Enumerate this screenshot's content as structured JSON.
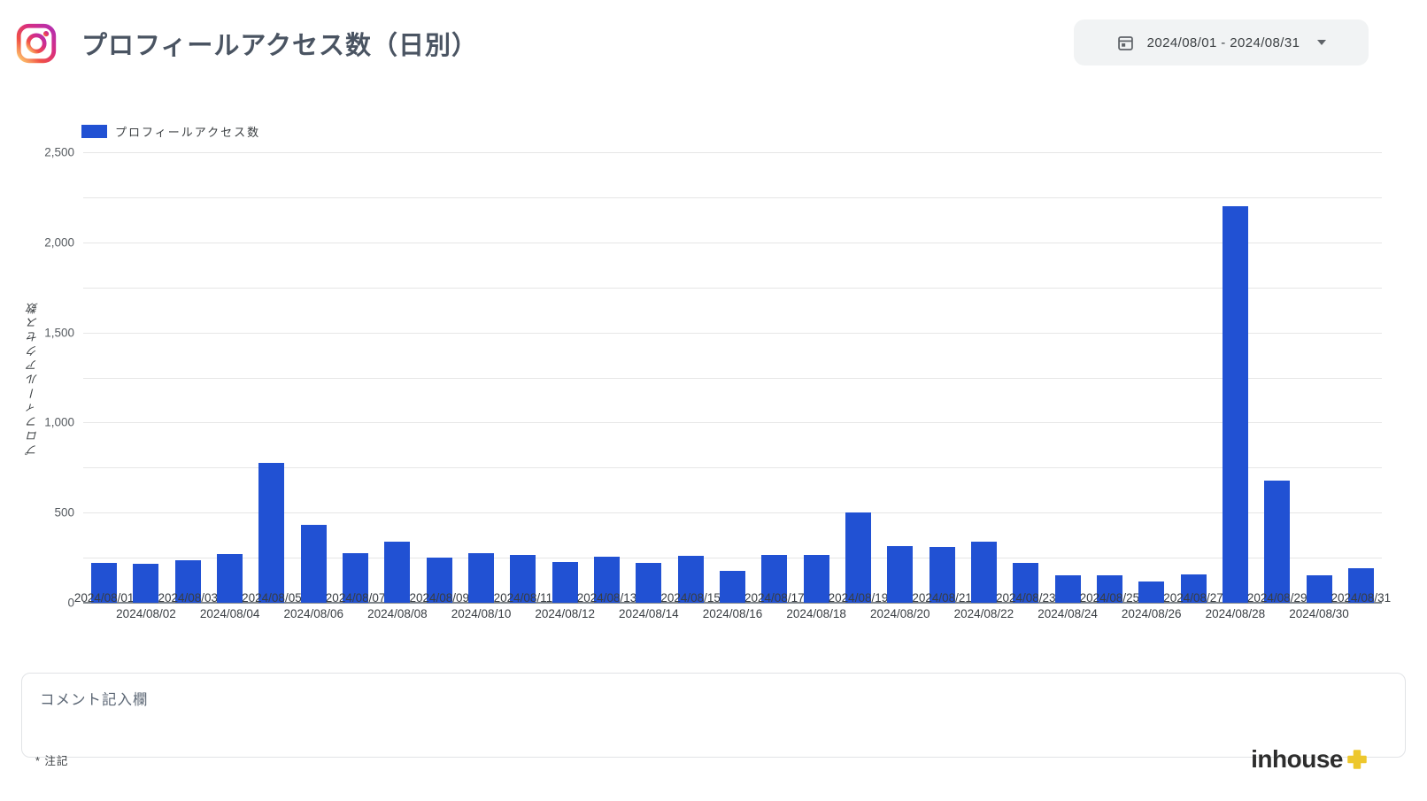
{
  "header": {
    "title": "プロフィールアクセス数（日別）",
    "date_range_picker": {
      "value": "2024/08/01 - 2024/08/31"
    }
  },
  "legend": {
    "label": "プロフィールアクセス数"
  },
  "chart_data": {
    "type": "bar",
    "title": "プロフィールアクセス数（日別）",
    "xlabel": "",
    "ylabel": "プロフィールアクセス数",
    "categories": [
      "2024/08/01",
      "2024/08/02",
      "2024/08/03",
      "2024/08/04",
      "2024/08/05",
      "2024/08/06",
      "2024/08/07",
      "2024/08/08",
      "2024/08/09",
      "2024/08/10",
      "2024/08/11",
      "2024/08/12",
      "2024/08/13",
      "2024/08/14",
      "2024/08/15",
      "2024/08/16",
      "2024/08/17",
      "2024/08/18",
      "2024/08/19",
      "2024/08/20",
      "2024/08/21",
      "2024/08/22",
      "2024/08/23",
      "2024/08/24",
      "2024/08/25",
      "2024/08/26",
      "2024/08/27",
      "2024/08/28",
      "2024/08/29",
      "2024/08/30",
      "2024/08/31"
    ],
    "values": [
      220,
      215,
      235,
      270,
      775,
      430,
      275,
      340,
      250,
      275,
      265,
      225,
      255,
      220,
      260,
      175,
      265,
      265,
      500,
      315,
      310,
      340,
      220,
      150,
      150,
      120,
      155,
      2200,
      680,
      150,
      190
    ],
    "series_name": "プロフィールアクセス数",
    "ylim": [
      0,
      2500
    ],
    "gridline_interval": 250,
    "ytick_labels": [
      "0",
      "500",
      "1,000",
      "1,500",
      "2,000",
      "2,500"
    ],
    "ytick_interval": 500,
    "grid": true,
    "legend_position": "top-left",
    "x_label_rows": "alternating",
    "bar_color": "#2151d3"
  },
  "comment_box": {
    "placeholder": "コメント記入欄"
  },
  "footer": {
    "note": "* 注記",
    "brand_name": "inhouse"
  },
  "colors": {
    "bar_blue": "#2151d3",
    "brand_plus_yellow": "#edc72c",
    "pill_background": "#f1f3f4",
    "title_text": "#4a5462",
    "gridline": "#e6e6e6"
  }
}
